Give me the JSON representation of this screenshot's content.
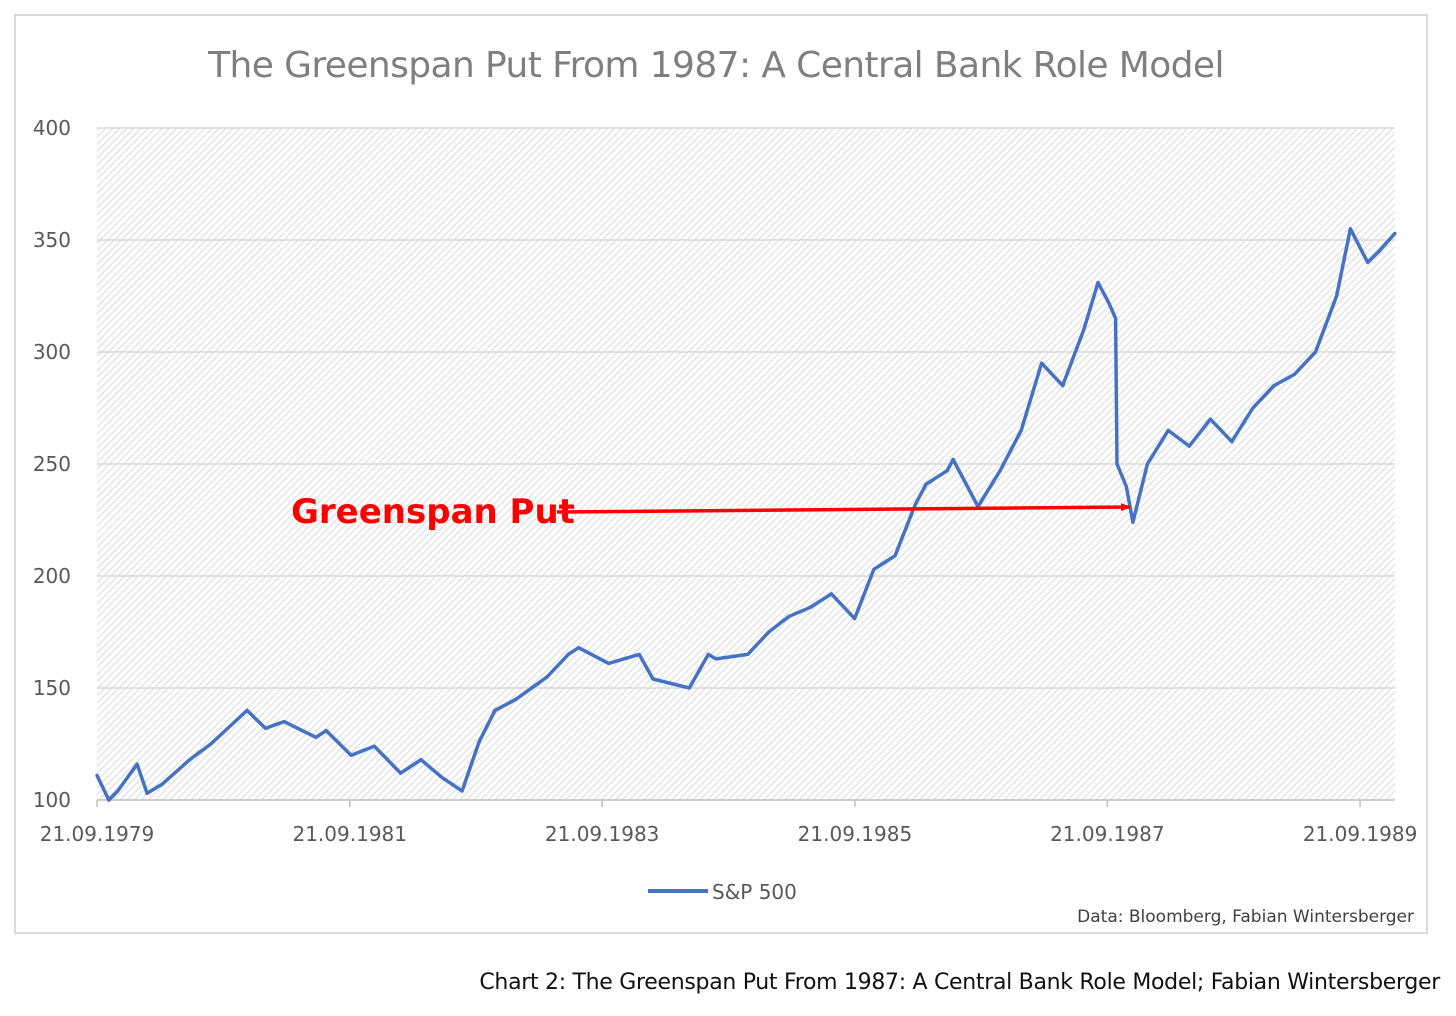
{
  "chart_data": {
    "type": "line",
    "title": "The Greenspan Put From 1987: A Central Bank Role Model",
    "xlabel": "",
    "ylabel": "",
    "ylim": [
      100,
      400
    ],
    "yticks": [
      "100",
      "150",
      "200",
      "250",
      "300",
      "350",
      "400"
    ],
    "xticks": [
      "21.09.1979",
      "21.09.1981",
      "21.09.1983",
      "21.09.1985",
      "21.09.1987",
      "21.09.1989"
    ],
    "x_range": [
      "1979-09-21",
      "1989-12-31"
    ],
    "grid": "horizontal",
    "legend_position": "bottom",
    "series": [
      {
        "name": "S&P 500",
        "color": "#4472C4",
        "x": [
          "1979-09-21",
          "1979-10-25",
          "1979-11-20",
          "1980-01-15",
          "1980-02-13",
          "1980-03-27",
          "1980-06-15",
          "1980-08-15",
          "1980-11-28",
          "1981-01-20",
          "1981-03-15",
          "1981-06-15",
          "1981-07-15",
          "1981-09-25",
          "1981-12-01",
          "1982-02-15",
          "1982-04-15",
          "1982-06-15",
          "1982-08-12",
          "1982-09-30",
          "1982-11-15",
          "1983-01-15",
          "1983-04-15",
          "1983-06-15",
          "1983-07-15",
          "1983-10-10",
          "1984-01-06",
          "1984-02-15",
          "1984-05-30",
          "1984-07-24",
          "1984-08-15",
          "1984-11-15",
          "1985-01-15",
          "1985-03-15",
          "1985-05-15",
          "1985-07-15",
          "1985-09-20",
          "1985-11-15",
          "1986-01-15",
          "1986-03-15",
          "1986-04-15",
          "1986-06-15",
          "1986-07-02",
          "1986-09-12",
          "1986-11-15",
          "1987-01-15",
          "1987-03-15",
          "1987-05-15",
          "1987-07-15",
          "1987-08-25",
          "1987-09-25",
          "1987-10-15",
          "1987-10-19",
          "1987-11-15",
          "1987-12-04",
          "1988-01-15",
          "1988-03-15",
          "1988-05-15",
          "1988-07-15",
          "1988-09-15",
          "1988-11-15",
          "1989-01-15",
          "1989-03-15",
          "1989-05-15",
          "1989-07-15",
          "1989-08-24",
          "1989-10-13",
          "1989-11-15",
          "1989-12-31"
        ],
        "values": [
          111,
          100,
          104,
          116,
          103,
          107,
          118,
          125,
          140,
          132,
          135,
          128,
          131,
          120,
          124,
          112,
          118,
          110,
          104,
          126,
          140,
          145,
          155,
          165,
          168,
          161,
          165,
          154,
          150,
          165,
          163,
          165,
          175,
          182,
          186,
          192,
          181,
          203,
          209,
          232,
          241,
          247,
          252,
          231,
          247,
          265,
          295,
          285,
          310,
          331,
          322,
          315,
          250,
          240,
          224,
          250,
          265,
          258,
          270,
          260,
          275,
          285,
          290,
          300,
          325,
          355,
          340,
          345,
          353
        ]
      }
    ],
    "annotations": [
      {
        "text": "Greenspan Put",
        "color": "#FF0000",
        "target_x": "1987-12-04",
        "target_y": 229
      }
    ],
    "source_note": "Data: Bloomberg, Fabian Wintersberger"
  },
  "caption": "Chart 2: The Greenspan Put From 1987: A Central Bank Role Model; Fabian Wintersberger"
}
